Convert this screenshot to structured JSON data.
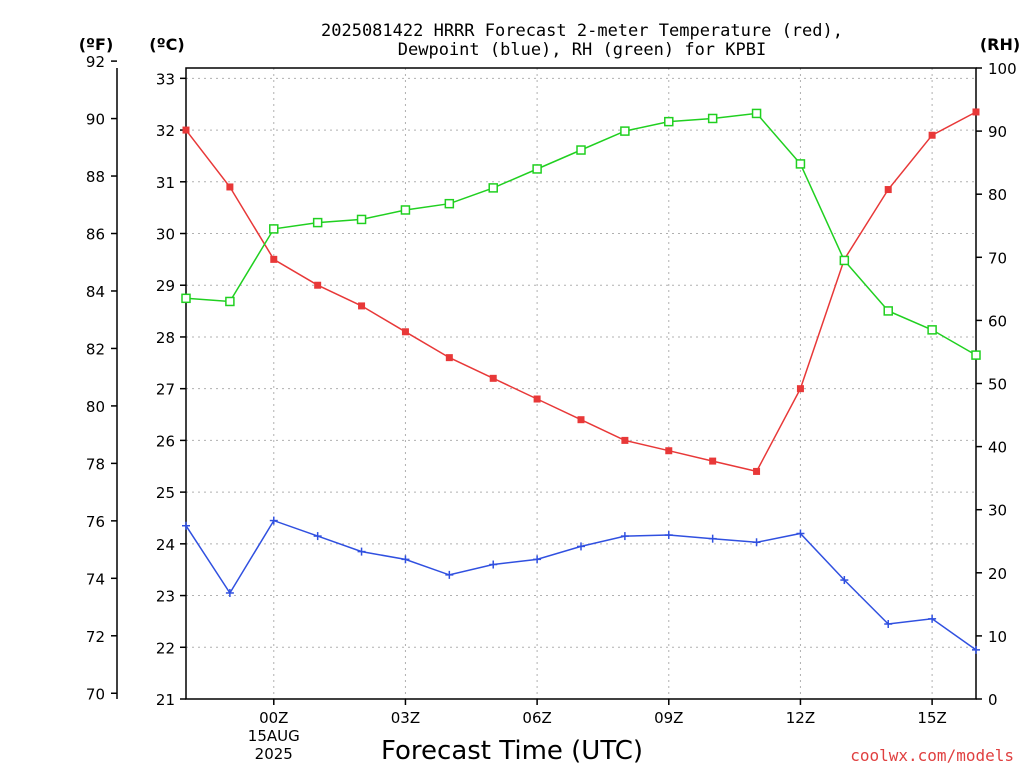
{
  "chart_data": {
    "type": "line",
    "title_line1": "2025081422 HRRR Forecast 2-meter Temperature (red),",
    "title_line2": "Dewpoint (blue), RH (green) for KPBI",
    "xlabel": "Forecast Time (UTC)",
    "left_unit_f": "(ºF)",
    "left_unit_c": "(ºC)",
    "right_unit": "(RH)",
    "credit": "coolwx.com/models",
    "x_hours": [
      -2,
      -1,
      0,
      1,
      2,
      3,
      4,
      5,
      6,
      7,
      8,
      9,
      10,
      11,
      12,
      13,
      14,
      15,
      16
    ],
    "x_ticks": [
      {
        "hour": 0,
        "label": "00Z",
        "sub1": "15AUG",
        "sub2": "2025"
      },
      {
        "hour": 3,
        "label": "03Z"
      },
      {
        "hour": 6,
        "label": "06Z"
      },
      {
        "hour": 9,
        "label": "09Z"
      },
      {
        "hour": 12,
        "label": "12Z"
      },
      {
        "hour": 15,
        "label": "15Z"
      }
    ],
    "xlim": [
      -2,
      16
    ],
    "celsius_axis": {
      "ylim": [
        21,
        33.2
      ],
      "ticks": [
        21,
        22,
        23,
        24,
        25,
        26,
        27,
        28,
        29,
        30,
        31,
        32,
        33
      ]
    },
    "fahrenheit_axis": {
      "ylim": [
        69.8,
        91.76
      ],
      "ticks": [
        70,
        72,
        74,
        76,
        78,
        80,
        82,
        84,
        86,
        88,
        90,
        92
      ]
    },
    "rh_axis": {
      "ylim": [
        0,
        100
      ],
      "ticks": [
        0,
        10,
        20,
        30,
        40,
        50,
        60,
        70,
        80,
        90,
        100
      ]
    },
    "series": [
      {
        "name": "Temperature",
        "axis": "celsius",
        "color": "#e83838",
        "marker": "filled-square",
        "values": [
          32.0,
          30.9,
          29.5,
          29.0,
          28.6,
          28.1,
          27.6,
          27.2,
          26.8,
          26.4,
          26.0,
          25.8,
          25.6,
          25.4,
          27.0,
          29.5,
          30.85,
          31.9,
          32.35
        ]
      },
      {
        "name": "Dewpoint",
        "axis": "celsius",
        "color": "#3050e0",
        "marker": "plus",
        "values": [
          24.35,
          23.05,
          24.45,
          24.15,
          23.85,
          23.7,
          23.4,
          23.6,
          23.7,
          23.95,
          24.15,
          24.17,
          24.1,
          24.03,
          24.2,
          23.3,
          22.45,
          22.55,
          21.95
        ]
      },
      {
        "name": "RH",
        "axis": "rh",
        "color": "#20d020",
        "marker": "open-square",
        "values": [
          63.5,
          63.0,
          74.5,
          75.5,
          76.0,
          77.5,
          78.5,
          81.0,
          84.0,
          87.0,
          90.0,
          91.5,
          92.0,
          92.8,
          84.8,
          69.5,
          61.5,
          58.5,
          54.5
        ]
      }
    ],
    "grid": true
  }
}
